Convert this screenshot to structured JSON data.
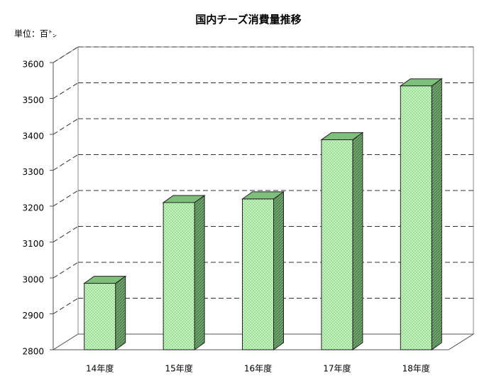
{
  "chart_data": {
    "type": "bar3d",
    "title": "国内チーズ消費量推移",
    "unit_label": "単位：百㌧",
    "categories": [
      "14年度",
      "15年度",
      "16年度",
      "17年度",
      "18年度"
    ],
    "values": [
      2985,
      3210,
      3220,
      3385,
      3535
    ],
    "color": "#b8f0b0",
    "ylim": [
      2800,
      3600
    ],
    "yticks": [
      2800,
      2900,
      3000,
      3100,
      3200,
      3300,
      3400,
      3500,
      3600
    ],
    "grid": true
  }
}
